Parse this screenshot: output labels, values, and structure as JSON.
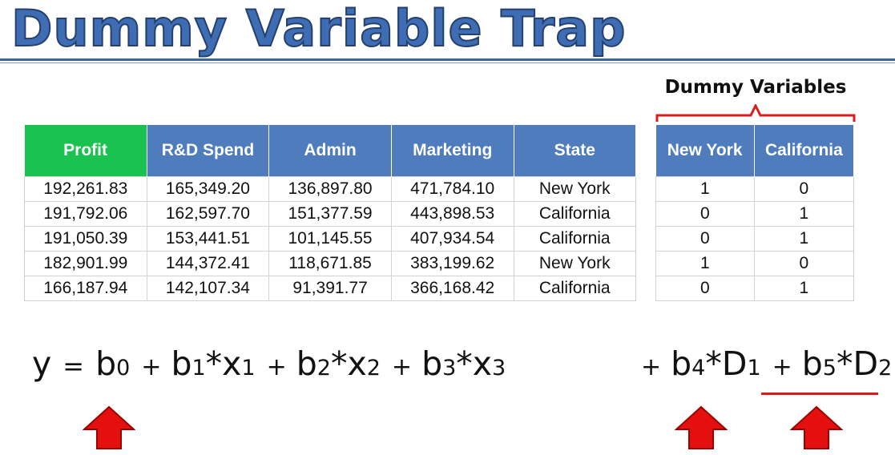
{
  "title": "Dummy Variable Trap",
  "dummy_label": "Dummy Variables",
  "main_table": {
    "headers": [
      "Profit",
      "R&D Spend",
      "Admin",
      "Marketing",
      "State"
    ],
    "rows": [
      [
        "192,261.83",
        "165,349.20",
        "136,897.80",
        "471,784.10",
        "New York"
      ],
      [
        "191,792.06",
        "162,597.70",
        "151,377.59",
        "443,898.53",
        "California"
      ],
      [
        "191,050.39",
        "153,441.51",
        "101,145.55",
        "407,934.54",
        "California"
      ],
      [
        "182,901.99",
        "144,372.41",
        "118,671.85",
        "383,199.62",
        "New York"
      ],
      [
        "166,187.94",
        "142,107.34",
        "91,391.77",
        "366,168.42",
        "California"
      ]
    ]
  },
  "dummy_table": {
    "headers": [
      "New York",
      "California"
    ],
    "rows": [
      [
        "1",
        "0"
      ],
      [
        "0",
        "1"
      ],
      [
        "0",
        "1"
      ],
      [
        "1",
        "0"
      ],
      [
        "0",
        "1"
      ]
    ]
  },
  "equation": {
    "lhs": "y",
    "equals": "=",
    "plus": "+",
    "terms": [
      {
        "coef": "b",
        "coef_sub": "0",
        "var": "",
        "var_sub": ""
      },
      {
        "coef": "b",
        "coef_sub": "1",
        "var": "*x",
        "var_sub": "1"
      },
      {
        "coef": "b",
        "coef_sub": "2",
        "var": "*x",
        "var_sub": "2"
      },
      {
        "coef": "b",
        "coef_sub": "3",
        "var": "*x",
        "var_sub": "3"
      },
      {
        "coef": "b",
        "coef_sub": "4",
        "var": "*D",
        "var_sub": "1"
      },
      {
        "coef": "b",
        "coef_sub": "5",
        "var": "*D",
        "var_sub": "2"
      }
    ]
  },
  "colors": {
    "title": "#3f6db3",
    "header_blue": "#4f7cbd",
    "header_green": "#1ac24f",
    "accent_red": "#d81d1d"
  },
  "icons": [
    "up-arrow-icon",
    "up-arrow-icon",
    "up-arrow-icon"
  ]
}
